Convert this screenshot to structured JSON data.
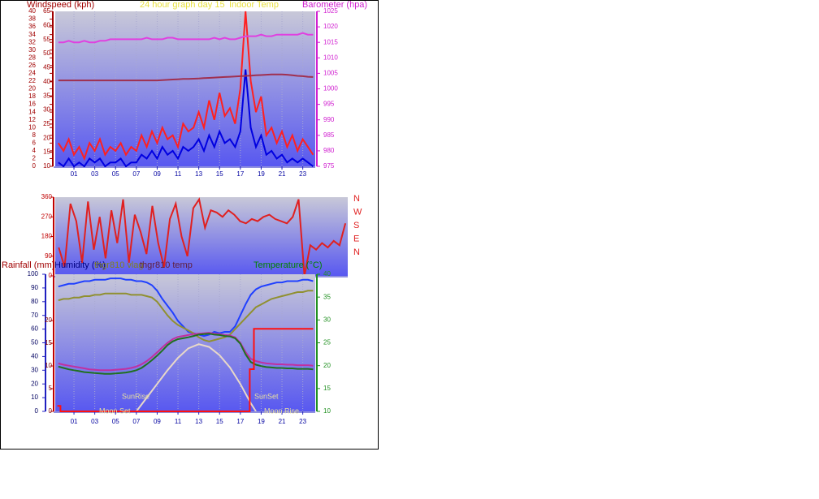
{
  "chart_data": [
    {
      "type": "line",
      "title": "24 hour graph day  15",
      "ylabel": "Windspeed (kph)",
      "y2label": "Barometer (hpa)",
      "x": [
        -0.5,
        0,
        0.5,
        1,
        1.5,
        2,
        2.5,
        3,
        3.5,
        4,
        4.5,
        5,
        5.5,
        6,
        6.5,
        7,
        7.5,
        8,
        8.5,
        9,
        9.5,
        10,
        10.5,
        11,
        11.5,
        12,
        12.5,
        13,
        13.5,
        14,
        14.5,
        15,
        15.5,
        16,
        16.5,
        17,
        17.5,
        18,
        18.5,
        19,
        19.5,
        20,
        20.5,
        21,
        21.5,
        22,
        22.5,
        23,
        23.5,
        24
      ],
      "xlim": [
        -0.8,
        24.2
      ],
      "xticks": [
        {
          "value": 1,
          "label": "01"
        },
        {
          "value": 3,
          "label": "03"
        },
        {
          "value": 5,
          "label": "05"
        },
        {
          "value": 7,
          "label": "07"
        },
        {
          "value": 9,
          "label": "09"
        },
        {
          "value": 11,
          "label": "11"
        },
        {
          "value": 13,
          "label": "13"
        },
        {
          "value": 15,
          "label": "15"
        },
        {
          "value": 17,
          "label": "17"
        },
        {
          "value": 19,
          "label": "19"
        },
        {
          "value": 21,
          "label": "21"
        },
        {
          "value": 23,
          "label": "23"
        }
      ],
      "ylim": [
        0,
        40
      ],
      "yticks": [
        0,
        2,
        4,
        6,
        8,
        10,
        12,
        14,
        16,
        18,
        20,
        22,
        24,
        26,
        28,
        30,
        32,
        34,
        36,
        38,
        40
      ],
      "y3lim": [
        10,
        65
      ],
      "y3ticks": [
        10,
        15,
        20,
        25,
        30,
        35,
        40,
        45,
        50,
        55,
        60,
        65
      ],
      "y2lim": [
        975,
        1025
      ],
      "y2ticks": [
        975,
        980,
        985,
        990,
        995,
        1000,
        1005,
        1010,
        1015,
        1020,
        1025
      ],
      "grid": true,
      "series": [
        {
          "color": "#ff2020",
          "axis": "y",
          "values": [
            6,
            4,
            7,
            3,
            5,
            2,
            6,
            4,
            7,
            3,
            5,
            4,
            6,
            3,
            5,
            4,
            8,
            5,
            9,
            6,
            10,
            7,
            8,
            5,
            11,
            9,
            10,
            14,
            10,
            17,
            12,
            19,
            13,
            15,
            11,
            20,
            40,
            22,
            14,
            18,
            8,
            10,
            6,
            9,
            5,
            8,
            4,
            7,
            5,
            3
          ]
        },
        {
          "color": "#0000e0",
          "axis": "y",
          "values": [
            1,
            0,
            2,
            0,
            1,
            0,
            2,
            1,
            2,
            0,
            1,
            1,
            2,
            0,
            1,
            1,
            3,
            2,
            4,
            2,
            5,
            3,
            4,
            2,
            5,
            4,
            5,
            7,
            4,
            8,
            5,
            9,
            6,
            7,
            5,
            9,
            25,
            10,
            5,
            8,
            3,
            4,
            2,
            3,
            1,
            2,
            1,
            2,
            1,
            0
          ]
        },
        {
          "color": "#e040e0",
          "axis": "y2",
          "values": [
            1015,
            1015,
            1015.5,
            1015,
            1015,
            1015.5,
            1015,
            1015,
            1015.5,
            1015.5,
            1016,
            1016,
            1016,
            1016,
            1016,
            1016,
            1016,
            1016.5,
            1016,
            1016,
            1016,
            1016.5,
            1016.5,
            1016,
            1016,
            1016,
            1016,
            1016,
            1016,
            1016,
            1016.5,
            1016,
            1016.5,
            1016,
            1016,
            1016.5,
            1017,
            1017,
            1017,
            1017.5,
            1017,
            1017,
            1017.5,
            1017.5,
            1017.5,
            1017.5,
            1017.5,
            1018,
            1017.5,
            1017.5
          ]
        },
        {
          "name": "Indoor Temp",
          "color": "#a03050",
          "axis": "y3",
          "values": [
            40.5,
            40.5,
            40.5,
            40.5,
            40.5,
            40.5,
            40.5,
            40.5,
            40.5,
            40.5,
            40.5,
            40.5,
            40.5,
            40.5,
            40.5,
            40.5,
            40.5,
            40.5,
            40.5,
            40.5,
            40.6,
            40.7,
            40.8,
            40.9,
            41.0,
            41.0,
            41.1,
            41.2,
            41.3,
            41.4,
            41.5,
            41.6,
            41.7,
            41.8,
            41.9,
            42.0,
            42.1,
            42.2,
            42.3,
            42.4,
            42.5,
            42.6,
            42.6,
            42.6,
            42.5,
            42.3,
            42.1,
            42.0,
            41.8,
            41.7
          ]
        }
      ]
    },
    {
      "type": "line",
      "x": [
        -0.5,
        0,
        0.5,
        1,
        1.5,
        2,
        2.5,
        3,
        3.5,
        4,
        4.5,
        5,
        5.5,
        6,
        6.5,
        7,
        7.5,
        8,
        8.5,
        9,
        9.5,
        10,
        10.5,
        11,
        11.5,
        12,
        12.5,
        13,
        13.5,
        14,
        14.5,
        15,
        15.5,
        16,
        16.5,
        17,
        17.5,
        18,
        18.5,
        19,
        19.5,
        20,
        20.5,
        21,
        21.5,
        22,
        22.5,
        23,
        23.5,
        24
      ],
      "xlim": [
        -0.8,
        24.2
      ],
      "ylim": [
        0,
        360
      ],
      "yticks": [
        0,
        90,
        180,
        270,
        360
      ],
      "direction_labels": [
        "N",
        "W",
        "S",
        "E",
        "N"
      ],
      "grid": false,
      "series": [
        {
          "color": "#e02020",
          "axis": "y",
          "values": [
            130,
            40,
            330,
            250,
            60,
            340,
            120,
            270,
            80,
            300,
            150,
            350,
            60,
            280,
            200,
            100,
            320,
            150,
            40,
            260,
            330,
            180,
            90,
            310,
            350,
            220,
            300,
            290,
            270,
            300,
            280,
            250,
            240,
            260,
            250,
            270,
            280,
            260,
            250,
            240,
            270,
            350,
            0,
            140,
            120,
            150,
            130,
            160,
            140,
            240
          ]
        }
      ]
    },
    {
      "type": "line",
      "ylabel": "Humidity (%)",
      "y3label": "Rainfall (mm)",
      "y2label": "Temperature (°C)",
      "annotations": [
        "SunRise",
        "SunSet",
        "Moon Set",
        "Moon Rise"
      ],
      "x": [
        -0.5,
        0,
        0.5,
        1,
        1.5,
        2,
        2.5,
        3,
        3.5,
        4,
        4.5,
        5,
        5.5,
        6,
        6.5,
        7,
        7.5,
        8,
        8.5,
        9,
        9.5,
        10,
        10.5,
        11,
        11.5,
        12,
        12.5,
        13,
        13.5,
        14,
        14.5,
        15,
        15.5,
        16,
        16.5,
        17,
        17.5,
        18,
        18.5,
        19,
        19.5,
        20,
        20.5,
        21,
        21.5,
        22,
        22.5,
        23,
        23.5,
        24
      ],
      "xlim": [
        -0.8,
        24.2
      ],
      "xticks": [
        {
          "value": 1,
          "label": "01"
        },
        {
          "value": 3,
          "label": "03"
        },
        {
          "value": 5,
          "label": "05"
        },
        {
          "value": 7,
          "label": "07"
        },
        {
          "value": 9,
          "label": "09"
        },
        {
          "value": 11,
          "label": "11"
        },
        {
          "value": 13,
          "label": "13"
        },
        {
          "value": 15,
          "label": "15"
        },
        {
          "value": 17,
          "label": "17"
        },
        {
          "value": 19,
          "label": "19"
        },
        {
          "value": 21,
          "label": "21"
        },
        {
          "value": 23,
          "label": "23"
        }
      ],
      "ylim": [
        0,
        100
      ],
      "yticks": [
        0,
        10,
        20,
        30,
        40,
        50,
        60,
        70,
        80,
        90,
        100
      ],
      "y3lim": [
        0,
        30.2
      ],
      "y3ticks": [
        0,
        5,
        10,
        15,
        20
      ],
      "y2lim": [
        10,
        40
      ],
      "y2ticks": [
        10,
        15,
        20,
        25,
        30,
        35,
        40
      ],
      "grid": true,
      "series": [
        {
          "color": "#e8d8c8",
          "axis": "y",
          "x": [
            7,
            8,
            9,
            10,
            11,
            12,
            13,
            14,
            15,
            16,
            17,
            18,
            18.5
          ],
          "values": [
            0,
            10,
            20,
            30,
            39,
            46,
            49,
            47,
            41,
            32,
            20,
            6,
            0
          ]
        },
        {
          "color": "#2040ff",
          "axis": "y",
          "values": [
            91,
            92,
            93,
            93,
            94,
            95,
            95,
            96,
            96,
            96,
            97,
            97,
            97,
            96,
            96,
            95,
            95,
            94,
            92,
            88,
            82,
            77,
            72,
            66,
            62,
            58,
            57,
            56,
            55,
            56,
            58,
            57,
            58,
            58,
            62,
            70,
            78,
            85,
            89,
            91,
            92,
            93,
            94,
            94,
            95,
            95,
            95,
            96,
            96,
            95
          ]
        },
        {
          "name": "thgr810 vlag",
          "color": "#909030",
          "axis": "y",
          "values": [
            81,
            82,
            82,
            83,
            83,
            84,
            84,
            85,
            85,
            86,
            86,
            86,
            86,
            86,
            85,
            85,
            85,
            84,
            83,
            80,
            75,
            70,
            66,
            63,
            61,
            59,
            57,
            54,
            52,
            51,
            52,
            53,
            54,
            56,
            60,
            64,
            68,
            72,
            76,
            78,
            80,
            82,
            83,
            84,
            85,
            86,
            87,
            87,
            88,
            88
          ]
        },
        {
          "name": "thgr810 temp",
          "color": "#c030a0",
          "axis": "y2",
          "values": [
            20.5,
            20.2,
            20.0,
            19.8,
            19.6,
            19.4,
            19.2,
            19.1,
            19.0,
            19.0,
            19.0,
            19.1,
            19.2,
            19.3,
            19.5,
            19.8,
            20.3,
            21.0,
            21.9,
            22.9,
            24.0,
            25.0,
            25.8,
            26.3,
            26.5,
            26.7,
            26.9,
            27.0,
            27.1,
            27.2,
            27.0,
            26.9,
            26.7,
            26.6,
            26.2,
            25.0,
            23.0,
            21.5,
            21.0,
            20.7,
            20.5,
            20.4,
            20.3,
            20.3,
            20.2,
            20.2,
            20.1,
            20.1,
            20.1,
            20.0
          ]
        },
        {
          "color": "#207020",
          "axis": "y2",
          "values": [
            19.8,
            19.5,
            19.2,
            19.0,
            18.8,
            18.6,
            18.5,
            18.4,
            18.3,
            18.2,
            18.2,
            18.3,
            18.4,
            18.5,
            18.7,
            19.0,
            19.5,
            20.3,
            21.2,
            22.2,
            23.3,
            24.5,
            25.3,
            25.8,
            26.0,
            26.2,
            26.5,
            26.8,
            26.9,
            27.0,
            26.8,
            26.7,
            26.5,
            26.4,
            26.0,
            24.8,
            22.5,
            20.8,
            20.2,
            19.9,
            19.7,
            19.6,
            19.5,
            19.5,
            19.4,
            19.4,
            19.3,
            19.3,
            19.3,
            19.2
          ]
        },
        {
          "color": "#ff1010",
          "axis": "y3",
          "x": [
            -0.6,
            -0.3,
            -0.3,
            17.9,
            17.9,
            18.3,
            18.3,
            24
          ],
          "values": [
            1.2,
            1.2,
            0,
            0,
            9.3,
            9.3,
            18.2,
            18.2
          ]
        }
      ]
    }
  ]
}
